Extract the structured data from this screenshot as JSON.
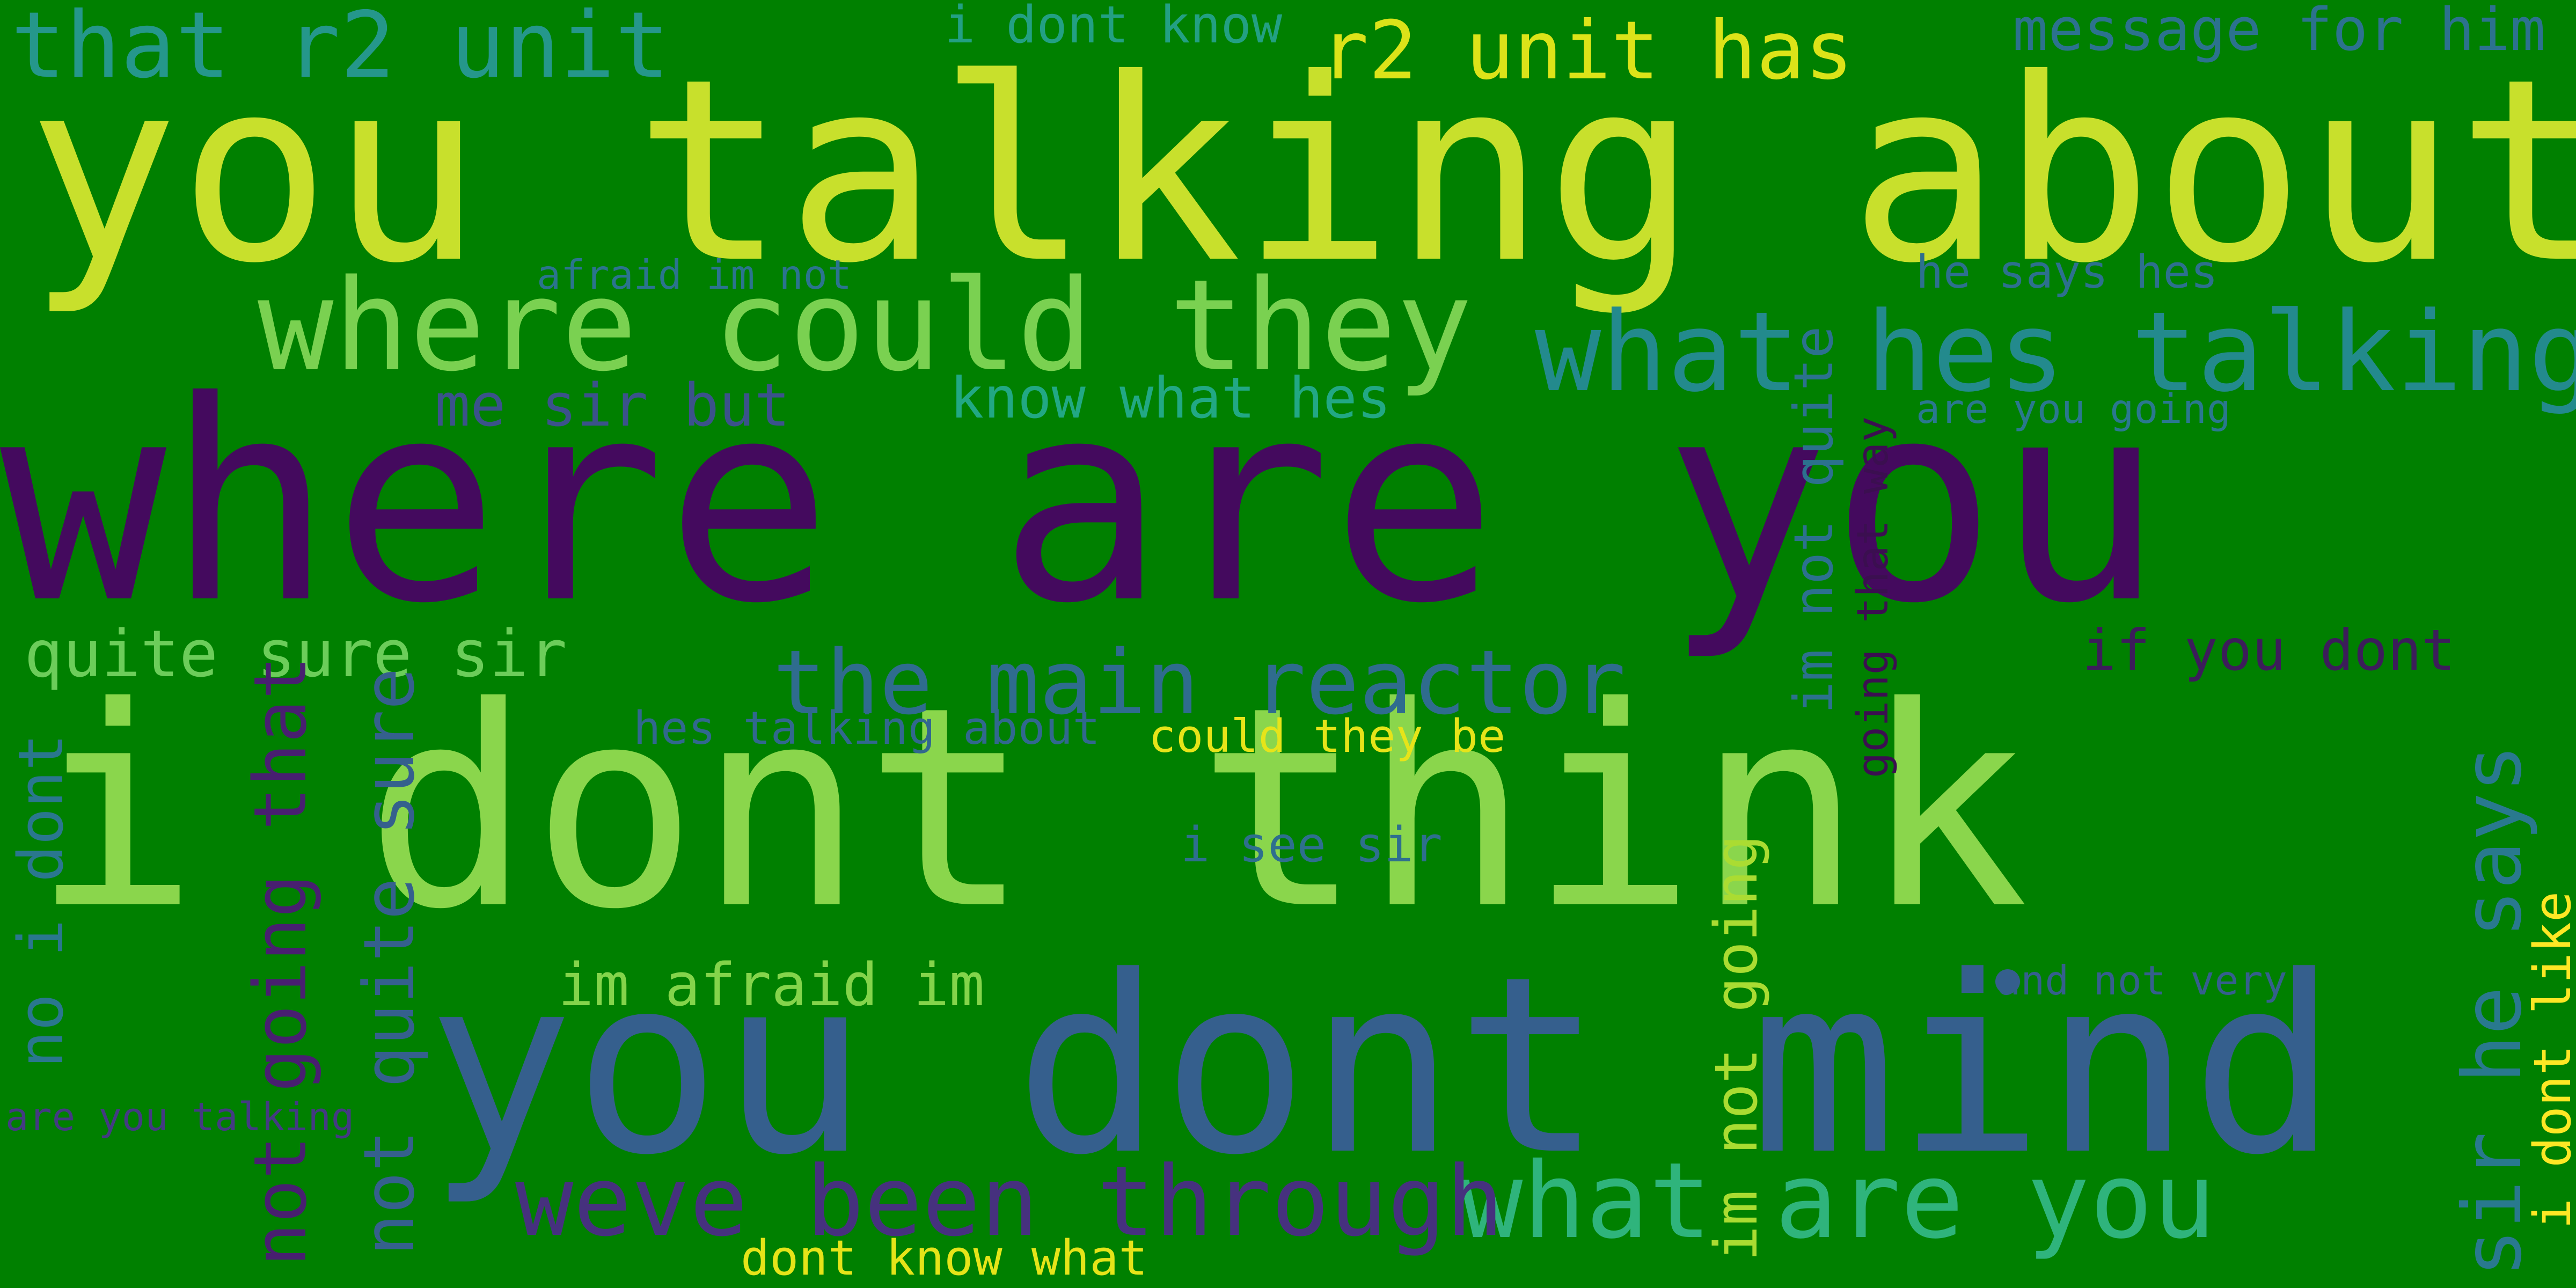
{
  "word_cloud": {
    "background": "#008000",
    "phrases": [
      {
        "text": "where are you",
        "color": "#440a5e"
      },
      {
        "text": "i dont think",
        "color": "#8ad64c"
      },
      {
        "text": "you talking about",
        "color": "#c8e02c"
      },
      {
        "text": "you dont mind",
        "color": "#355f8d"
      },
      {
        "text": "where could they",
        "color": "#7ad151"
      },
      {
        "text": "what hes talking",
        "color": "#238a8d"
      },
      {
        "text": "what are you",
        "color": "#2fb47c"
      },
      {
        "text": "weve been through",
        "color": "#46317e"
      },
      {
        "text": "the main reactor",
        "color": "#2f6c8e"
      },
      {
        "text": "that r2 unit",
        "color": "#25978b"
      },
      {
        "text": "r2 unit has",
        "color": "#dce319"
      },
      {
        "text": "message for him",
        "color": "#2c728e"
      },
      {
        "text": "i dont know",
        "color": "#23a083"
      },
      {
        "text": "afraid im not",
        "color": "#2b748e"
      },
      {
        "text": "he says hes",
        "color": "#2d708e"
      },
      {
        "text": "me sir but",
        "color": "#3b528b"
      },
      {
        "text": "know what hes",
        "color": "#22a884"
      },
      {
        "text": "are you going",
        "color": "#2a788e"
      },
      {
        "text": "quite sure sir",
        "color": "#6ccd5a"
      },
      {
        "text": "if you dont",
        "color": "#3c1d5a"
      },
      {
        "text": "hes talking about",
        "color": "#31688e"
      },
      {
        "text": "could they be",
        "color": "#e6e419"
      },
      {
        "text": "i see sir",
        "color": "#2e6f8e"
      },
      {
        "text": "im afraid im",
        "color": "#84d44b"
      },
      {
        "text": "and not very",
        "color": "#355f8d"
      },
      {
        "text": "are you talking",
        "color": "#443a83"
      },
      {
        "text": "dont know what",
        "color": "#e5e419"
      },
      {
        "text": "no i dont",
        "color": "#2a778e"
      },
      {
        "text": "not going that",
        "color": "#481f70"
      },
      {
        "text": "not quite sure",
        "color": "#35608d"
      },
      {
        "text": "im not going",
        "color": "#aadc32"
      },
      {
        "text": "im not quite",
        "color": "#2c718e"
      },
      {
        "text": "going that way",
        "color": "#3b0f50"
      },
      {
        "text": "sir he says",
        "color": "#29798e"
      },
      {
        "text": "i dont like",
        "color": "#fde725"
      }
    ]
  }
}
